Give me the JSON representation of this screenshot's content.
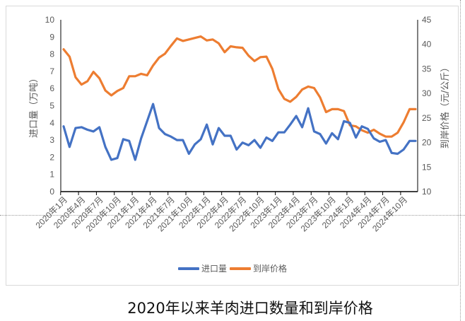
{
  "caption": "2020年以来羊肉进口数量和到岸价格",
  "legend": {
    "series1_label": "进口量",
    "series2_label": "到岸价格"
  },
  "axes": {
    "left_title": "进口量（万吨）",
    "right_title": "到岸价格（元/公斤）",
    "left_ticks": [
      "0",
      "1",
      "2",
      "3",
      "4",
      "5",
      "6",
      "7",
      "8",
      "9",
      "10"
    ],
    "right_ticks": [
      "10",
      "15",
      "20",
      "25",
      "30",
      "35",
      "40",
      "45"
    ],
    "x_ticks": [
      "2020年1月",
      "2020年4月",
      "2020年7月",
      "2020年10月",
      "2021年1月",
      "2021年4月",
      "2021年7月",
      "2021年10月",
      "2022年1月",
      "2022年4月",
      "2022年7月",
      "2022年10月",
      "2023年1月",
      "2023年4月",
      "2023年7月",
      "2023年10月",
      "2024年1月",
      "2024年4月",
      "2024年7月",
      "2024年10月"
    ]
  },
  "colors": {
    "import_volume": "#4472C4",
    "landed_price": "#ED7D31",
    "axis_text": "#595959"
  },
  "chart_data": {
    "type": "line",
    "title": "2020年以来羊肉进口数量和到岸价格",
    "xlabel": "",
    "ylabel": "进口量（万吨）",
    "y2label": "到岸价格（元/公斤）",
    "ylim": [
      0,
      10
    ],
    "y2lim": [
      10,
      45
    ],
    "grid": false,
    "legend_position": "bottom",
    "x": [
      "2020-01",
      "2020-02",
      "2020-03",
      "2020-04",
      "2020-05",
      "2020-06",
      "2020-07",
      "2020-08",
      "2020-09",
      "2020-10",
      "2020-11",
      "2020-12",
      "2021-01",
      "2021-02",
      "2021-03",
      "2021-04",
      "2021-05",
      "2021-06",
      "2021-07",
      "2021-08",
      "2021-09",
      "2021-10",
      "2021-11",
      "2021-12",
      "2022-01",
      "2022-02",
      "2022-03",
      "2022-04",
      "2022-05",
      "2022-06",
      "2022-07",
      "2022-08",
      "2022-09",
      "2022-10",
      "2022-11",
      "2022-12",
      "2023-01",
      "2023-02",
      "2023-03",
      "2023-04",
      "2023-05",
      "2023-06",
      "2023-07",
      "2023-08",
      "2023-09",
      "2023-10",
      "2023-11",
      "2023-12",
      "2024-01",
      "2024-02",
      "2024-03",
      "2024-04",
      "2024-05",
      "2024-06",
      "2024-07",
      "2024-08",
      "2024-09",
      "2024-10",
      "2024-11",
      "2024-12"
    ],
    "series": [
      {
        "name": "进口量",
        "axis": "left",
        "values": [
          3.8,
          2.6,
          3.7,
          3.75,
          3.6,
          3.5,
          3.75,
          2.6,
          1.85,
          1.95,
          3.05,
          2.95,
          1.85,
          3.1,
          4.1,
          5.1,
          3.7,
          3.35,
          3.2,
          3.0,
          3.0,
          2.2,
          2.75,
          3.05,
          3.9,
          2.75,
          3.7,
          3.25,
          3.25,
          2.45,
          2.85,
          2.7,
          3.0,
          2.55,
          3.15,
          2.95,
          3.45,
          3.45,
          3.9,
          4.4,
          3.75,
          4.85,
          3.5,
          3.35,
          2.8,
          3.4,
          3.05,
          4.1,
          4.0,
          3.15,
          3.8,
          3.65,
          3.1,
          2.9,
          3.0,
          2.25,
          2.2,
          2.45,
          2.95,
          2.95
        ]
      },
      {
        "name": "到岸价格",
        "axis": "right",
        "values": [
          39.0,
          37.5,
          33.3,
          31.8,
          32.5,
          34.4,
          33.1,
          30.6,
          29.6,
          30.5,
          31.1,
          33.5,
          33.5,
          34.0,
          33.7,
          35.7,
          37.3,
          38.1,
          39.7,
          41.2,
          40.7,
          41.0,
          41.3,
          41.6,
          40.8,
          41.0,
          40.2,
          38.4,
          39.6,
          39.4,
          39.3,
          37.7,
          36.6,
          37.4,
          37.5,
          35.0,
          30.9,
          28.9,
          28.3,
          29.3,
          30.8,
          31.4,
          31.1,
          29.2,
          26.2,
          26.8,
          26.8,
          26.4,
          23.5,
          23.3,
          22.5,
          22.0,
          22.6,
          21.8,
          21.2,
          21.2,
          22.0,
          24.1,
          26.8,
          26.8
        ]
      }
    ]
  }
}
